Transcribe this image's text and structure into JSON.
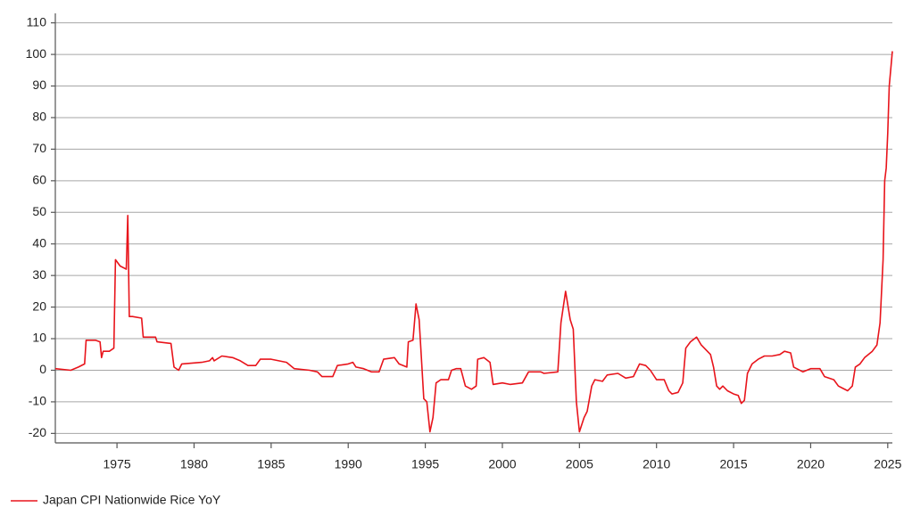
{
  "chart_data": {
    "type": "line",
    "x": [
      1971.0,
      1972.0,
      1972.5,
      1972.9,
      1973.0,
      1973.6,
      1973.9,
      1974.0,
      1974.1,
      1974.5,
      1974.8,
      1974.9,
      1975.2,
      1975.6,
      1975.7,
      1975.8,
      1976.0,
      1976.6,
      1976.7,
      1977.5,
      1977.6,
      1978.5,
      1978.7,
      1979.0,
      1979.2,
      1980.5,
      1981.0,
      1981.2,
      1981.3,
      1981.8,
      1982.5,
      1983.0,
      1983.5,
      1984.0,
      1984.3,
      1985.0,
      1985.5,
      1986.0,
      1986.5,
      1987.5,
      1988.0,
      1988.3,
      1989.0,
      1989.3,
      1990.0,
      1990.3,
      1990.5,
      1991.0,
      1991.5,
      1992.0,
      1992.3,
      1993.0,
      1993.3,
      1993.8,
      1993.9,
      1994.2,
      1994.4,
      1994.6,
      1994.9,
      1995.1,
      1995.3,
      1995.5,
      1995.7,
      1996.0,
      1996.5,
      1996.7,
      1997.0,
      1997.3,
      1997.6,
      1998.0,
      1998.3,
      1998.4,
      1998.8,
      1999.2,
      1999.4,
      2000.0,
      2000.5,
      2001.3,
      2001.7,
      2002.5,
      2002.7,
      2003.6,
      2003.8,
      2004.1,
      2004.4,
      2004.6,
      2004.8,
      2005.0,
      2005.3,
      2005.5,
      2005.8,
      2006.0,
      2006.5,
      2006.8,
      2007.5,
      2008.0,
      2008.5,
      2008.9,
      2009.3,
      2009.6,
      2010.0,
      2010.5,
      2010.8,
      2011.0,
      2011.4,
      2011.7,
      2011.9,
      2012.2,
      2012.6,
      2012.9,
      2013.5,
      2013.7,
      2013.9,
      2014.1,
      2014.3,
      2014.6,
      2015.0,
      2015.3,
      2015.5,
      2015.7,
      2015.9,
      2016.2,
      2016.6,
      2017.0,
      2017.5,
      2018.0,
      2018.3,
      2018.7,
      2018.9,
      2019.5,
      2020.0,
      2020.6,
      2020.9,
      2021.5,
      2021.8,
      2022.0,
      2022.4,
      2022.7,
      2022.9,
      2023.2,
      2023.5,
      2024.0,
      2024.3,
      2024.5,
      2024.7,
      2024.8,
      2024.9,
      2025.0,
      2025.1,
      2025.3
    ],
    "series": [
      {
        "name": "Japan CPI Nationwide Rice YoY",
        "color": "#e8141b",
        "values": [
          0.5,
          0,
          1,
          2,
          9.5,
          9.5,
          9,
          4,
          6,
          6,
          7,
          35,
          33,
          32,
          49,
          17,
          17,
          16.5,
          10.5,
          10.5,
          9,
          8.5,
          1,
          0,
          2,
          2.5,
          3,
          4,
          3,
          4.5,
          4,
          3,
          1.5,
          1.5,
          3.5,
          3.5,
          3,
          2.5,
          0.5,
          0,
          -0.5,
          -2,
          -2,
          1.5,
          2,
          2.5,
          1,
          0.5,
          -0.5,
          -0.5,
          3.5,
          4,
          2,
          1,
          9,
          9.5,
          21,
          16,
          -9,
          -10,
          -19.5,
          -15,
          -4,
          -3,
          -3,
          0,
          0.5,
          0.5,
          -5,
          -6,
          -5,
          3.5,
          4,
          2.5,
          -4.5,
          -4,
          -4.5,
          -4,
          -0.5,
          -0.5,
          -1,
          -0.5,
          15,
          25,
          16,
          13,
          -10,
          -19.5,
          -15,
          -13,
          -5,
          -3,
          -3.5,
          -1.5,
          -1,
          -2.5,
          -2,
          2,
          1.5,
          0,
          -3,
          -3,
          -6.5,
          -7.5,
          -7,
          -4,
          7,
          9,
          10.5,
          8,
          5,
          1,
          -5,
          -6,
          -5,
          -6.5,
          -7.5,
          -8,
          -10.5,
          -9.5,
          -1,
          2,
          3.5,
          4.5,
          4.5,
          5,
          6,
          5.5,
          1,
          -0.5,
          0.5,
          0.5,
          -2,
          -3,
          -5,
          -5.5,
          -6.5,
          -5,
          1,
          2,
          4,
          6,
          8,
          15,
          35,
          60,
          64,
          75,
          90,
          101
        ]
      }
    ],
    "xlim": [
      1971.0,
      2025.3
    ],
    "xticks": [
      1975,
      1980,
      1985,
      1990,
      1995,
      2000,
      2005,
      2010,
      2015,
      2020,
      2025
    ],
    "ylim": [
      -23,
      113
    ],
    "yticks": [
      -20,
      -10,
      0,
      10,
      20,
      30,
      40,
      50,
      60,
      70,
      80,
      90,
      100,
      110
    ],
    "grid": true,
    "legend": "bottom-left"
  }
}
